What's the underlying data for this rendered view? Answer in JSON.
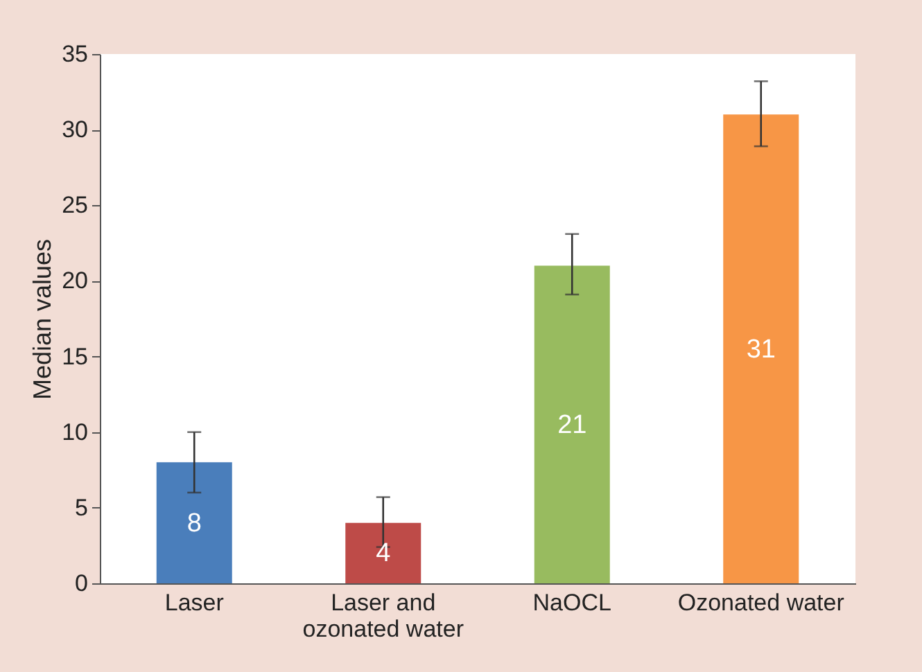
{
  "chart_data": {
    "type": "bar",
    "ylabel": "Median values",
    "categories": [
      "Laser",
      "Laser and ozonated water",
      "NaOCL",
      "Ozonated water"
    ],
    "values": [
      8,
      4,
      21,
      31
    ],
    "colors": [
      "#4a7ebb",
      "#be4b48",
      "#98bb5f",
      "#f79646"
    ],
    "errors": [
      2,
      [
        2.4,
        5.7
      ],
      [
        19.1,
        23.1
      ],
      [
        28.9,
        33.2
      ]
    ],
    "ylim": [
      0,
      35
    ],
    "yticks": [
      0,
      5,
      10,
      15,
      20,
      25,
      30,
      35
    ],
    "data_labels": true,
    "grid": false
  }
}
